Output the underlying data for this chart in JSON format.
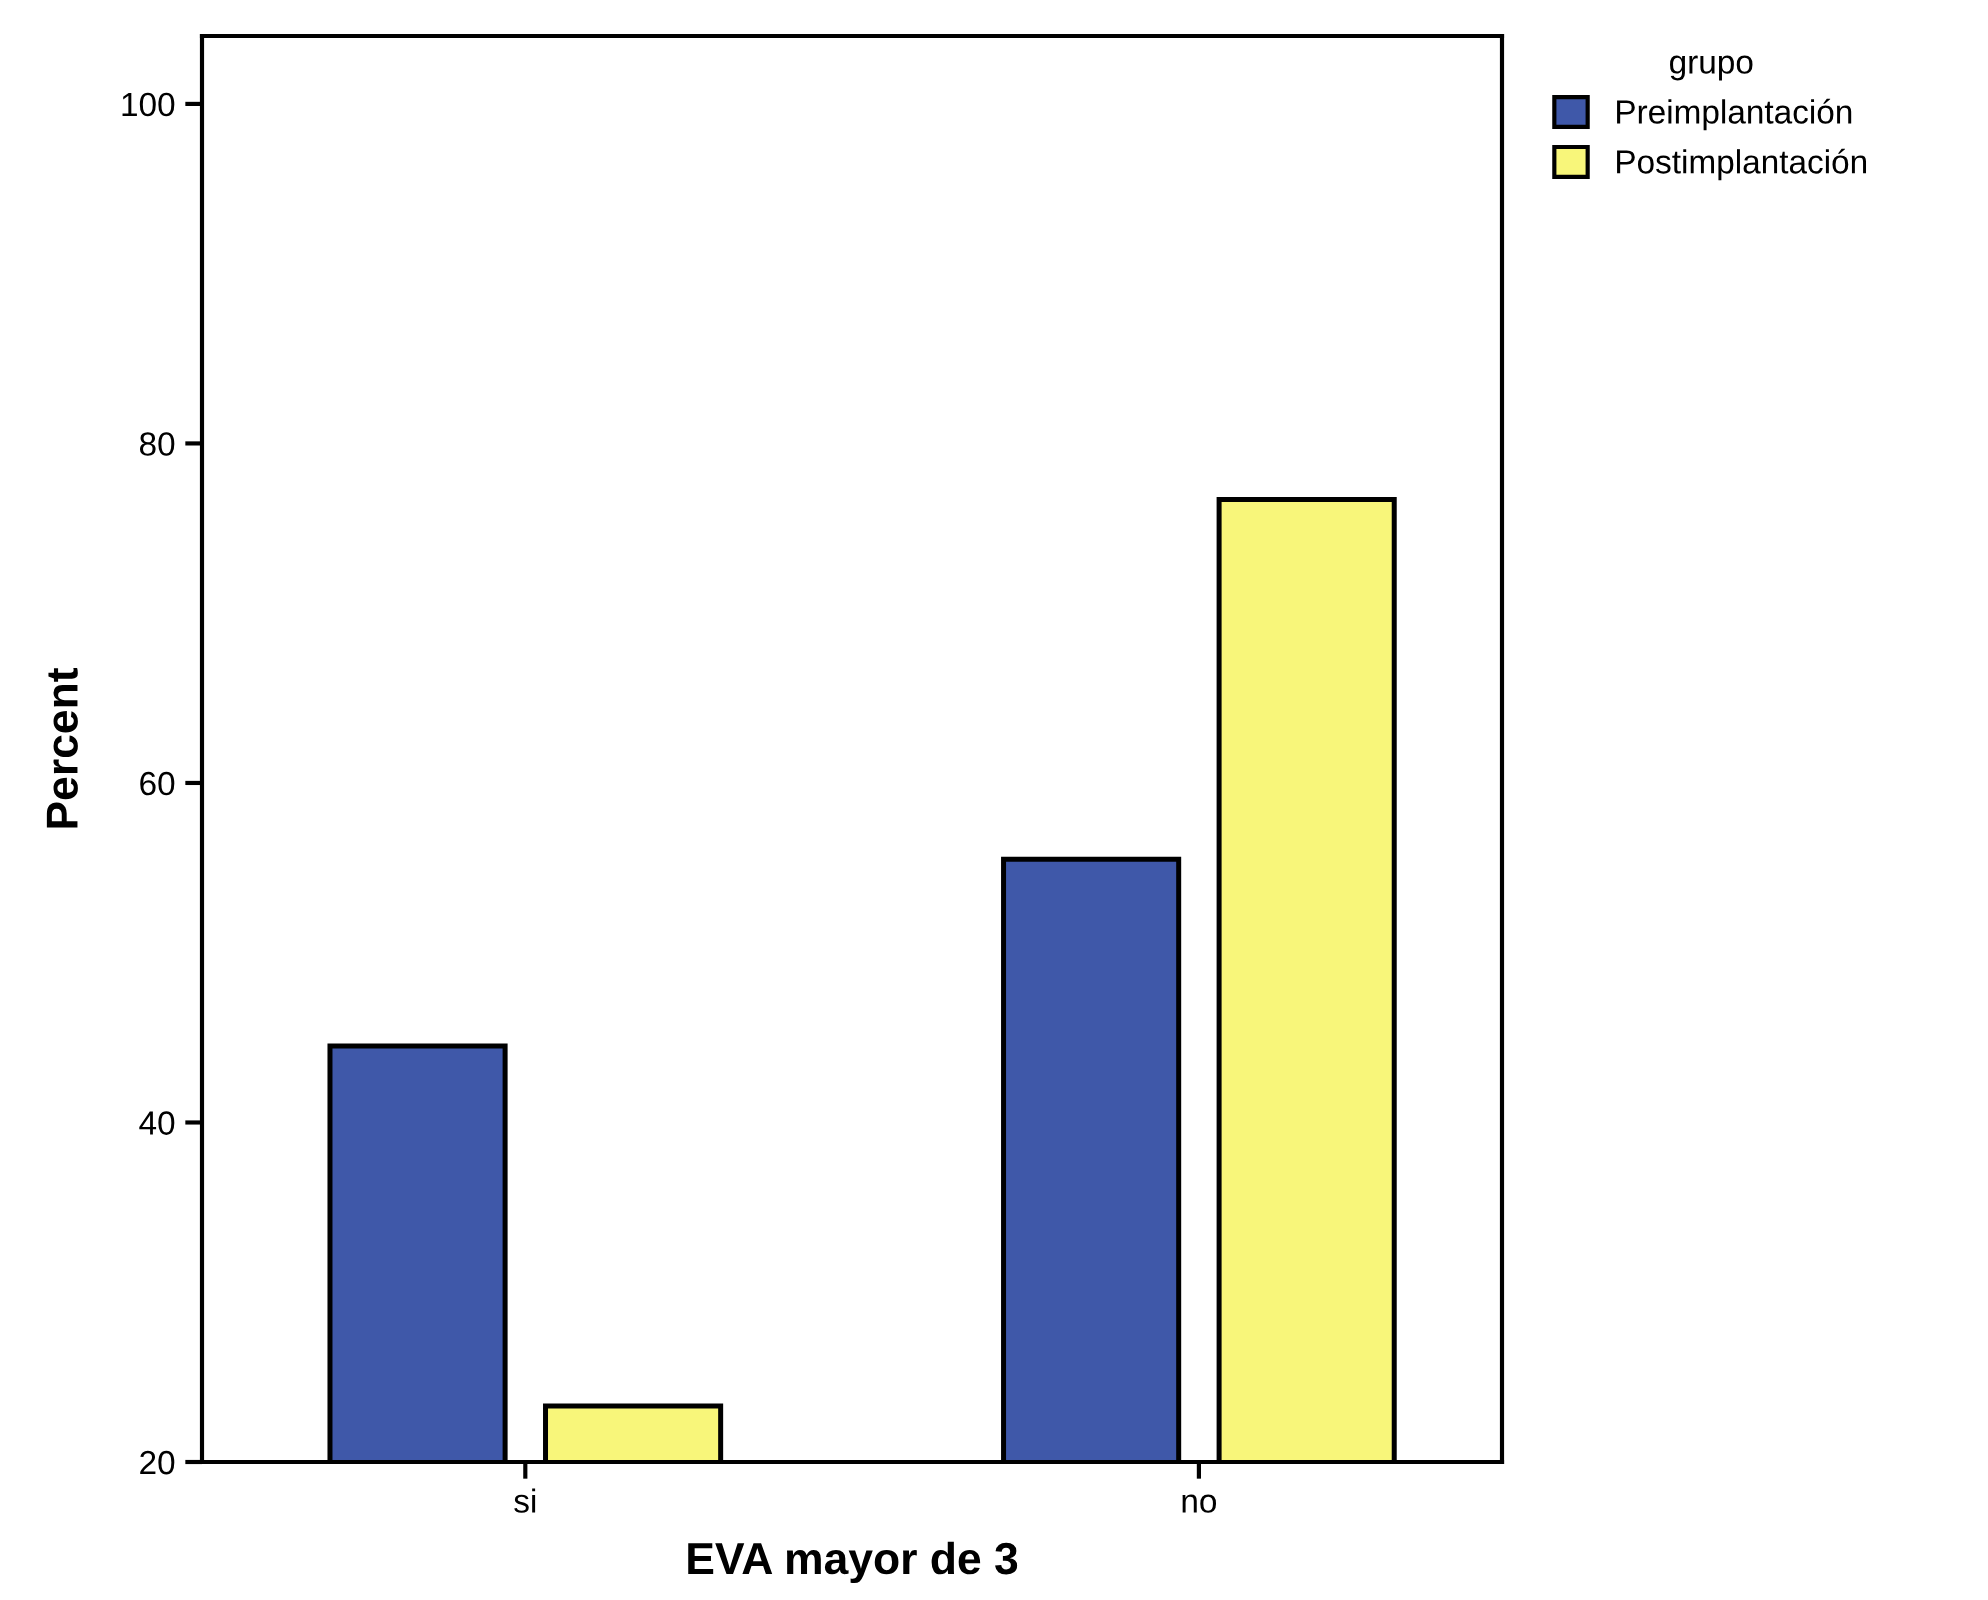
{
  "chart_data": {
    "type": "bar",
    "xlabel": "EVA mayor de 3",
    "ylabel": "Percent",
    "legend_title": "grupo",
    "legend": "top right",
    "categories": [
      "si",
      "no"
    ],
    "series": [
      {
        "name": "Preimplantación",
        "color": "#3f58a9",
        "values": [
          44.5,
          55.5
        ]
      },
      {
        "name": "Postimplantación",
        "color": "#f8f67a",
        "values": [
          23.3,
          76.7
        ]
      }
    ],
    "ylim": [
      20,
      104
    ],
    "yticks": [
      20,
      40,
      60,
      80,
      100
    ],
    "grid": false
  }
}
